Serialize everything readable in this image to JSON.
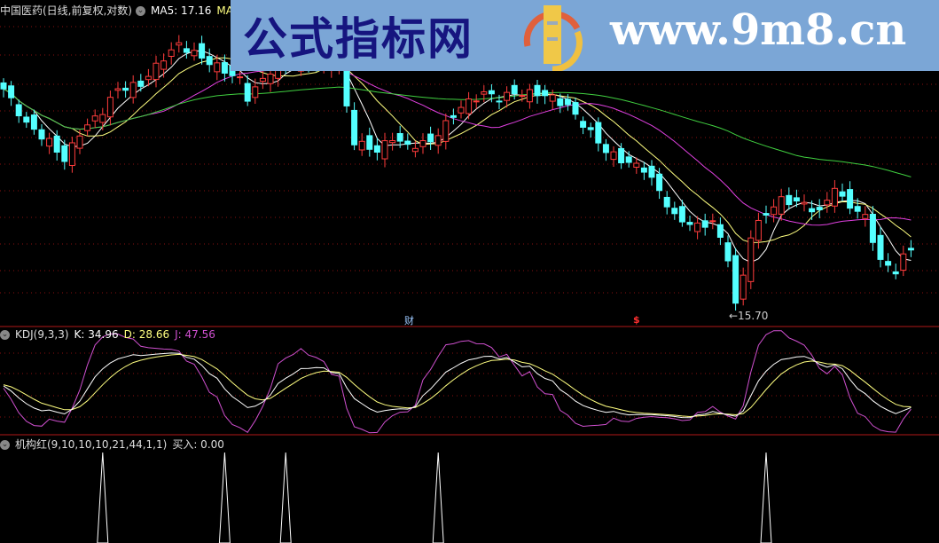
{
  "header": {
    "stock_title": "中国医药(日线,前复权,对数)",
    "ma5_label": "MA5: 17.16",
    "ma10_label": "MA10"
  },
  "kdj": {
    "title": "KDJ(9,3,3)",
    "k_label": "K: 34.96",
    "d_label": "D: 28.66",
    "j_label": "J: 47.56"
  },
  "indicator": {
    "title": "机构红(9,10,10,10,21,44,1,1)",
    "buy_label": "买入: 0.00"
  },
  "annotations": {
    "finance_marker": "财",
    "dollar_marker": "$",
    "low_price": "←15.70"
  },
  "watermark": {
    "site_name": "公式指标网",
    "url": "www.9m8.cn"
  },
  "colors": {
    "up": "#ff3c3c",
    "down": "#54ffff",
    "ma5": "#ffffff",
    "ma10": "#ffff80",
    "ma20": "#e040e0",
    "ma60": "#40d040",
    "kdj_k": "#ffffff",
    "kdj_d": "#ffff80",
    "kdj_j": "#d050d0",
    "grid": "#8a1010"
  },
  "chart_data": {
    "type": "candlestick",
    "scale": "log",
    "bars": 120,
    "low_mark": 15.7,
    "close_keypoints": [
      {
        "bar": 0,
        "close": 22.73
      },
      {
        "bar": 3,
        "close": 21.43
      },
      {
        "bar": 6,
        "close": 20.81
      },
      {
        "bar": 8,
        "close": 20.19
      },
      {
        "bar": 10,
        "close": 21.12
      },
      {
        "bar": 13,
        "close": 21.91
      },
      {
        "bar": 15,
        "close": 22.73
      },
      {
        "bar": 18,
        "close": 22.9
      },
      {
        "bar": 21,
        "close": 23.95
      },
      {
        "bar": 23,
        "close": 24.48
      },
      {
        "bar": 27,
        "close": 23.77
      },
      {
        "bar": 29,
        "close": 23.43
      },
      {
        "bar": 31,
        "close": 23.08
      },
      {
        "bar": 32,
        "close": 22.4
      },
      {
        "bar": 35,
        "close": 23.43
      },
      {
        "bar": 38,
        "close": 23.77
      },
      {
        "bar": 44,
        "close": 23.6
      },
      {
        "bar": 45,
        "close": 22.07
      },
      {
        "bar": 46,
        "close": 20.81
      },
      {
        "bar": 49,
        "close": 20.5
      },
      {
        "bar": 51,
        "close": 20.96
      },
      {
        "bar": 53,
        "close": 20.65
      },
      {
        "bar": 56,
        "close": 20.81
      },
      {
        "bar": 58,
        "close": 21.43
      },
      {
        "bar": 60,
        "close": 22.07
      },
      {
        "bar": 63,
        "close": 22.57
      },
      {
        "bar": 65,
        "close": 22.4
      },
      {
        "bar": 67,
        "close": 22.57
      },
      {
        "bar": 70,
        "close": 22.57
      },
      {
        "bar": 72,
        "close": 22.4
      },
      {
        "bar": 74,
        "close": 22.07
      },
      {
        "bar": 77,
        "close": 21.12
      },
      {
        "bar": 79,
        "close": 20.5
      },
      {
        "bar": 81,
        "close": 20.19
      },
      {
        "bar": 84,
        "close": 19.9
      },
      {
        "bar": 86,
        "close": 19.17
      },
      {
        "bar": 88,
        "close": 18.35
      },
      {
        "bar": 91,
        "close": 18.07
      },
      {
        "bar": 93,
        "close": 18.21
      },
      {
        "bar": 95,
        "close": 17.16
      },
      {
        "bar": 96,
        "close": 15.82
      },
      {
        "bar": 97,
        "close": 16.66
      },
      {
        "bar": 98,
        "close": 17.8
      },
      {
        "bar": 100,
        "close": 18.48
      },
      {
        "bar": 102,
        "close": 18.89
      },
      {
        "bar": 105,
        "close": 18.76
      },
      {
        "bar": 107,
        "close": 18.48
      },
      {
        "bar": 109,
        "close": 19.32
      },
      {
        "bar": 110,
        "close": 18.89
      },
      {
        "bar": 113,
        "close": 18.35
      },
      {
        "bar": 115,
        "close": 17.04
      },
      {
        "bar": 117,
        "close": 16.78
      },
      {
        "bar": 118,
        "close": 17.16
      },
      {
        "bar": 119,
        "close": 17.41
      }
    ],
    "moving_averages": [
      5,
      10,
      20,
      60
    ],
    "signal_bars": [
      13,
      29,
      37,
      57,
      100
    ]
  }
}
